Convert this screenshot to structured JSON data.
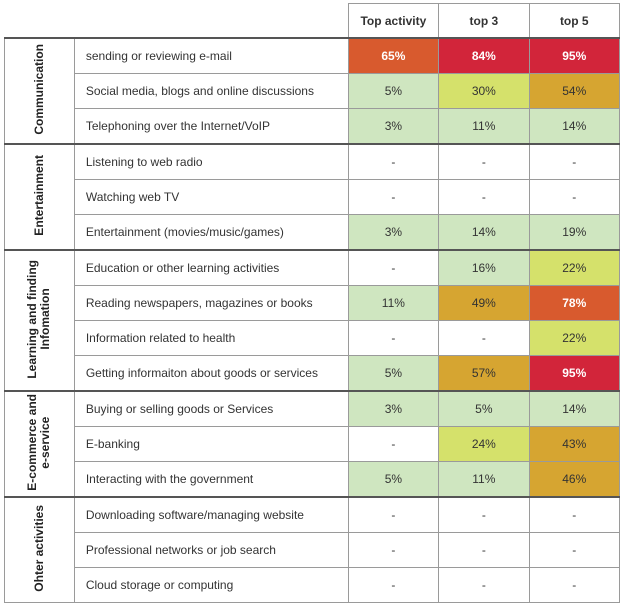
{
  "columns": [
    "Top activity",
    "top 3",
    "top 5"
  ],
  "colors": {
    "green": "#cfe6c0",
    "lime": "#d5e16b",
    "amber": "#d6a531",
    "orange": "#d85a2e",
    "red": "#d2253a",
    "none": "#ffffff"
  },
  "groups": [
    {
      "name": "Communication",
      "rows": [
        {
          "label": "sending or reviewing e-mail",
          "values": [
            "65%",
            "84%",
            "95%"
          ],
          "colors": [
            "orange",
            "red",
            "red"
          ]
        },
        {
          "label": "Social media, blogs and online discussions",
          "values": [
            "5%",
            "30%",
            "54%"
          ],
          "colors": [
            "green",
            "lime",
            "amber"
          ]
        },
        {
          "label": "Telephoning over the Internet/VoIP",
          "values": [
            "3%",
            "11%",
            "14%"
          ],
          "colors": [
            "green",
            "green",
            "green"
          ]
        }
      ]
    },
    {
      "name": "Entertainment",
      "rows": [
        {
          "label": "Listening to web radio",
          "values": [
            "-",
            "-",
            "-"
          ],
          "colors": [
            "none",
            "none",
            "none"
          ]
        },
        {
          "label": "Watching web TV",
          "values": [
            "-",
            "-",
            "-"
          ],
          "colors": [
            "none",
            "none",
            "none"
          ]
        },
        {
          "label": "Entertainment (movies/music/games)",
          "values": [
            "3%",
            "14%",
            "19%"
          ],
          "colors": [
            "green",
            "green",
            "green"
          ]
        }
      ]
    },
    {
      "name": "Learning and finding\nInfomation",
      "rows": [
        {
          "label": "Education or other learning activities",
          "values": [
            "-",
            "16%",
            "22%"
          ],
          "colors": [
            "none",
            "green",
            "lime"
          ]
        },
        {
          "label": "Reading newspapers, magazines or books",
          "values": [
            "11%",
            "49%",
            "78%"
          ],
          "colors": [
            "green",
            "amber",
            "orange"
          ]
        },
        {
          "label": "Information related to health",
          "values": [
            "-",
            "-",
            "22%"
          ],
          "colors": [
            "none",
            "none",
            "lime"
          ]
        },
        {
          "label": "Getting informaiton about goods or services",
          "values": [
            "5%",
            "57%",
            "95%"
          ],
          "colors": [
            "green",
            "amber",
            "red"
          ]
        }
      ]
    },
    {
      "name": "E-commerce and\ne-service",
      "rows": [
        {
          "label": "Buying or selling goods or Services",
          "values": [
            "3%",
            "5%",
            "14%"
          ],
          "colors": [
            "green",
            "green",
            "green"
          ]
        },
        {
          "label": "E-banking",
          "values": [
            "-",
            "24%",
            "43%"
          ],
          "colors": [
            "none",
            "lime",
            "amber"
          ]
        },
        {
          "label": "Interacting with the government",
          "values": [
            "5%",
            "11%",
            "46%"
          ],
          "colors": [
            "green",
            "green",
            "amber"
          ]
        }
      ]
    },
    {
      "name": "Ohter activities",
      "rows": [
        {
          "label": "Downloading software/managing website",
          "values": [
            "-",
            "-",
            "-"
          ],
          "colors": [
            "none",
            "none",
            "none"
          ]
        },
        {
          "label": "Professional networks  or job search",
          "values": [
            "-",
            "-",
            "-"
          ],
          "colors": [
            "none",
            "none",
            "none"
          ]
        },
        {
          "label": "Cloud storage or computing",
          "values": [
            "-",
            "-",
            "-"
          ],
          "colors": [
            "none",
            "none",
            "none"
          ]
        }
      ]
    }
  ],
  "chart_data": {
    "type": "table",
    "columns": [
      "Top activity",
      "top 3",
      "top 5"
    ],
    "groups": [
      "Communication",
      "Entertainment",
      "Learning and finding Infomation",
      "E-commerce and e-service",
      "Ohter activities"
    ]
  }
}
